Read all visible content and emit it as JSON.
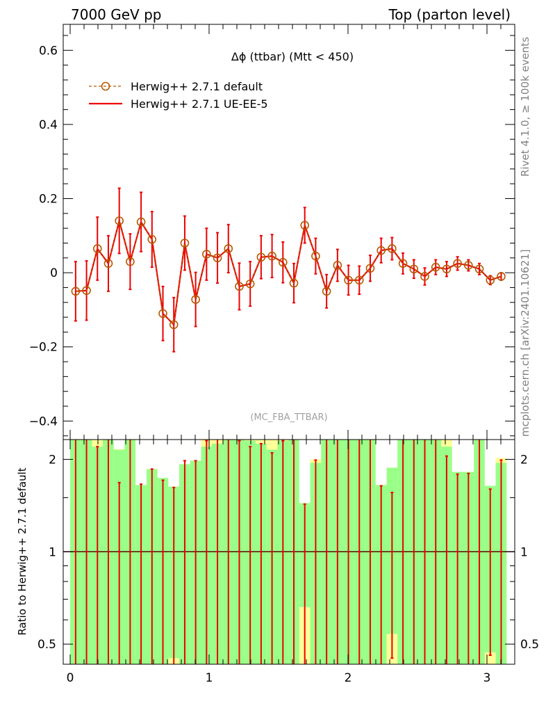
{
  "header": {
    "left": "7000 GeV pp",
    "right": "Top (parton level)"
  },
  "side": {
    "rivet": "Rivet 4.1.0, ≥ 100k events",
    "mcplots": "mcplots.cern.ch [arXiv:2401.10621]"
  },
  "colors": {
    "default": "#b35900",
    "ue": "#ee0000",
    "band_green": "#99ff88",
    "band_yellow": "#ffff99"
  },
  "chart_data": [
    {
      "type": "line",
      "title": "Δϕ (ttbar) (Mtt < 450)",
      "watermark": "(MC_FBA_TTBAR)",
      "xlabel": "",
      "ylabel": "",
      "xlim": [
        -0.05,
        3.2
      ],
      "ylim": [
        -0.45,
        0.67
      ],
      "yticks": [
        -0.4,
        -0.2,
        0,
        0.2,
        0.4,
        0.6
      ],
      "yticklabels": [
        "−0.4",
        "−0.2",
        "0",
        "0.2",
        "0.4",
        "0.6"
      ],
      "legend_position": "top-left",
      "x": [
        0.0393,
        0.1178,
        0.1963,
        0.2749,
        0.3534,
        0.432,
        0.5105,
        0.589,
        0.6676,
        0.7461,
        0.8247,
        0.9032,
        0.9817,
        1.0603,
        1.1388,
        1.2174,
        1.2959,
        1.3744,
        1.453,
        1.5315,
        1.6101,
        1.6886,
        1.7671,
        1.8457,
        1.9242,
        2.0028,
        2.0813,
        2.1598,
        2.2384,
        2.3169,
        2.3955,
        2.474,
        2.5525,
        2.6311,
        2.7096,
        2.7882,
        2.8667,
        2.9452,
        3.0238,
        3.1023
      ],
      "series": [
        {
          "name": "Herwig++ 2.7.1 default",
          "style": "dashed-open-circles",
          "values": [
            -0.05,
            -0.048,
            0.065,
            0.025,
            0.14,
            0.03,
            0.137,
            0.09,
            -0.11,
            -0.14,
            0.08,
            -0.072,
            0.05,
            0.04,
            0.065,
            -0.037,
            -0.03,
            0.042,
            0.045,
            0.028,
            -0.028,
            0.128,
            0.045,
            -0.05,
            0.02,
            -0.02,
            -0.02,
            0.012,
            0.06,
            0.065,
            0.025,
            0.01,
            -0.01,
            0.015,
            0.01,
            0.025,
            0.02,
            0.01,
            -0.02,
            -0.01
          ],
          "errors": [
            0.08,
            0.08,
            0.085,
            0.075,
            0.088,
            0.075,
            0.08,
            0.075,
            0.073,
            0.073,
            0.073,
            0.073,
            0.07,
            0.068,
            0.065,
            0.063,
            0.06,
            0.058,
            0.058,
            0.055,
            0.053,
            0.048,
            0.048,
            0.045,
            0.043,
            0.04,
            0.038,
            0.035,
            0.033,
            0.03,
            0.028,
            0.025,
            0.023,
            0.02,
            0.02,
            0.018,
            0.015,
            0.015,
            0.012,
            0.01
          ]
        },
        {
          "name": "Herwig++ 2.7.1 UE-EE-5",
          "style": "solid-line",
          "values": [
            -0.05,
            -0.048,
            0.065,
            0.025,
            0.14,
            0.03,
            0.137,
            0.09,
            -0.11,
            -0.14,
            0.08,
            -0.072,
            0.05,
            0.04,
            0.065,
            -0.037,
            -0.03,
            0.042,
            0.045,
            0.028,
            -0.028,
            0.128,
            0.045,
            -0.05,
            0.02,
            -0.02,
            -0.02,
            0.012,
            0.06,
            0.065,
            0.025,
            0.01,
            -0.01,
            0.015,
            0.01,
            0.025,
            0.02,
            0.01,
            -0.02,
            -0.01
          ],
          "errors": [
            0.08,
            0.08,
            0.085,
            0.075,
            0.088,
            0.075,
            0.08,
            0.075,
            0.073,
            0.073,
            0.073,
            0.073,
            0.07,
            0.068,
            0.065,
            0.063,
            0.06,
            0.058,
            0.058,
            0.055,
            0.053,
            0.048,
            0.048,
            0.045,
            0.043,
            0.04,
            0.038,
            0.035,
            0.033,
            0.03,
            0.028,
            0.025,
            0.023,
            0.02,
            0.02,
            0.018,
            0.015,
            0.015,
            0.012,
            0.01
          ]
        }
      ]
    },
    {
      "type": "bar",
      "title": "",
      "xlabel": "",
      "ylabel": "Ratio to Herwig++ 2.7.1 default",
      "scale": "log",
      "xlim": [
        -0.05,
        3.2
      ],
      "ylim": [
        0.43,
        2.32
      ],
      "xticks": [
        0,
        1,
        2,
        3
      ],
      "xticklabels": [
        "0",
        "1",
        "2",
        "3"
      ],
      "yticks": [
        0.5,
        1,
        2
      ],
      "yticklabels": [
        "0.5",
        "1",
        "2"
      ],
      "reference": 1,
      "bin_edges": [
        0,
        0.0785,
        0.1571,
        0.2356,
        0.3142,
        0.3927,
        0.4712,
        0.5498,
        0.6283,
        0.7069,
        0.7854,
        0.8639,
        0.9425,
        1.021,
        1.0996,
        1.1781,
        1.2566,
        1.3352,
        1.4137,
        1.4923,
        1.5708,
        1.6493,
        1.7279,
        1.8064,
        1.885,
        1.9635,
        2.042,
        2.1206,
        2.1991,
        2.2777,
        2.3562,
        2.4347,
        2.5133,
        2.5918,
        2.6704,
        2.7489,
        2.8274,
        2.906,
        2.9845,
        3.0631,
        3.1416
      ],
      "green_band_high": [
        2.4,
        2.4,
        2.4,
        2.4,
        2.4,
        2.4,
        2.4,
        2.4,
        2.4,
        2.4,
        2.4,
        2.4,
        2.4,
        2.4,
        2.4,
        2.4,
        2.4,
        2.4,
        2.4,
        2.4,
        2.4,
        2.4,
        2.4,
        2.4,
        2.4,
        2.4,
        2.4,
        2.4,
        2.4,
        2.4,
        2.4,
        2.4,
        2.4,
        2.4,
        2.4,
        2.4,
        2.4,
        2.4,
        2.4,
        2.4
      ],
      "green_band_low": [
        0.3,
        0.3,
        0.3,
        0.3,
        0.3,
        0.3,
        0.3,
        0.3,
        0.3,
        0.3,
        0.3,
        0.3,
        0.3,
        0.3,
        0.3,
        0.3,
        0.3,
        0.3,
        0.3,
        0.3,
        0.3,
        0.3,
        0.3,
        0.3,
        0.3,
        0.3,
        0.3,
        0.3,
        0.3,
        0.3,
        0.3,
        0.3,
        0.3,
        0.3,
        0.3,
        0.3,
        0.3,
        0.3,
        0.3,
        0.3
      ],
      "yellow_band_high": [
        2.4,
        2.4,
        2.4,
        2.4,
        2.4,
        2.4,
        2.4,
        2.4,
        2.4,
        2.4,
        2.4,
        2.4,
        2.4,
        2.4,
        2.4,
        2.4,
        2.4,
        2.4,
        2.4,
        2.4,
        2.4,
        2.4,
        2.4,
        2.4,
        2.4,
        2.4,
        2.4,
        2.4,
        2.4,
        2.4,
        2.4,
        2.4,
        2.4,
        2.4,
        2.4,
        2.4,
        2.4,
        2.4,
        2.4,
        2.4
      ],
      "yellow_band_low": [
        0.3,
        0.3,
        0.3,
        0.3,
        0.3,
        0.3,
        0.3,
        0.3,
        0.3,
        0.3,
        0.3,
        0.3,
        0.3,
        0.3,
        0.3,
        0.3,
        0.3,
        0.3,
        0.3,
        0.3,
        0.3,
        0.3,
        0.3,
        0.3,
        0.3,
        0.3,
        0.3,
        0.3,
        0.3,
        0.3,
        0.3,
        0.3,
        0.3,
        0.3,
        0.3,
        0.3,
        0.3,
        0.3,
        0.3,
        0.3
      ],
      "green_cap": [
        2.4,
        2.4,
        2.2,
        2.4,
        2.15,
        2.4,
        2.0,
        2.05,
        1.95,
        1.9,
        2.0,
        2.0,
        2.2,
        2.25,
        2.4,
        2.4,
        2.3,
        2.25,
        2.15,
        2.3,
        2.4,
        1.7,
        1.95,
        2.4,
        2.4,
        2.4,
        2.4,
        2.4,
        2.1,
        2.05,
        2.4,
        2.4,
        2.4,
        2.4,
        2.2,
        2.0,
        2.0,
        2.4,
        1.9,
        1.95
      ],
      "yellow_cap": [
        2.4,
        2.4,
        2.4,
        2.4,
        2.4,
        2.4,
        2.4,
        2.4,
        2.4,
        2.4,
        2.4,
        2.4,
        2.4,
        2.4,
        2.4,
        2.4,
        2.4,
        2.4,
        2.4,
        2.4,
        2.4,
        2.4,
        2.4,
        2.4,
        2.4,
        2.4,
        2.4,
        2.4,
        2.4,
        2.4,
        2.4,
        2.4,
        2.4,
        2.4,
        2.4,
        2.4,
        2.4,
        2.4,
        2.4,
        2.4
      ],
      "yellow_visible_top": [
        2.32,
        2.32,
        2.32,
        2.32,
        2.16,
        2.32,
        1.65,
        1.86,
        1.74,
        1.63,
        1.93,
        1.98,
        2.32,
        2.32,
        2.32,
        2.32,
        2.32,
        2.32,
        2.32,
        2.32,
        2.32,
        1.44,
        2.0,
        2.32,
        2.32,
        2.32,
        2.32,
        2.32,
        1.65,
        1.88,
        2.32,
        2.32,
        2.32,
        2.32,
        2.32,
        1.82,
        1.82,
        2.32,
        1.64,
        2.02
      ],
      "yellow_visible_bottom": [
        0.43,
        0.43,
        0.43,
        0.43,
        0.43,
        0.43,
        0.43,
        0.43,
        0.43,
        0.45,
        0.43,
        0.43,
        0.43,
        0.43,
        0.43,
        0.43,
        0.43,
        0.43,
        0.43,
        0.43,
        0.43,
        0.66,
        0.43,
        0.43,
        0.43,
        0.43,
        0.43,
        0.43,
        0.43,
        0.54,
        0.43,
        0.43,
        0.43,
        0.43,
        0.43,
        0.43,
        0.43,
        0.43,
        0.47,
        0.43
      ],
      "green_visible_top": [
        2.32,
        2.32,
        2.32,
        2.32,
        2.32,
        2.32,
        2.32,
        2.32,
        2.32,
        2.32,
        2.32,
        2.32,
        2.32,
        2.32,
        2.32,
        2.32,
        2.32,
        2.32,
        2.32,
        2.32,
        2.32,
        2.32,
        2.32,
        2.32,
        2.32,
        2.32,
        2.32,
        2.32,
        2.32,
        2.32,
        2.32,
        2.32,
        2.32,
        2.32,
        2.32,
        2.32,
        2.32,
        2.32,
        2.32,
        2.32
      ],
      "green_visible_bottom": [
        0.43,
        0.43,
        0.43,
        0.43,
        0.43,
        0.43,
        0.43,
        0.43,
        0.43,
        0.43,
        0.43,
        0.43,
        0.43,
        0.43,
        0.43,
        0.43,
        0.43,
        0.43,
        0.43,
        0.43,
        0.43,
        0.43,
        0.43,
        0.43,
        0.43,
        0.43,
        0.43,
        0.43,
        0.43,
        0.43,
        0.43,
        0.43,
        0.43,
        0.43,
        0.43,
        0.43,
        0.43,
        0.43,
        0.43,
        0.43
      ],
      "ratio_values": [
        1,
        1,
        1,
        1,
        1,
        1,
        1,
        1,
        1,
        1,
        1,
        1,
        1,
        1,
        1,
        1,
        1,
        1,
        1,
        1,
        1,
        1,
        1,
        1,
        1,
        1,
        1,
        1,
        1,
        1,
        1,
        1,
        1,
        1,
        1,
        1,
        1,
        1,
        1,
        1
      ],
      "ratio_err_high": [
        2.4,
        2.4,
        2.2,
        2.4,
        1.68,
        2.4,
        1.66,
        1.86,
        1.71,
        1.62,
        1.98,
        1.98,
        2.3,
        2.4,
        2.4,
        2.3,
        2.2,
        2.25,
        2.1,
        2.3,
        2.4,
        1.43,
        1.99,
        2.4,
        2.4,
        2.4,
        2.4,
        2.4,
        1.64,
        1.56,
        2.4,
        2.4,
        2.4,
        2.4,
        2.05,
        1.79,
        1.8,
        2.4,
        1.6,
        1.99
      ],
      "ratio_err_low": [
        0.3,
        0.3,
        0.3,
        0.3,
        0.3,
        0.3,
        0.37,
        0.3,
        0.3,
        0.43,
        0.3,
        0.3,
        0.3,
        0.3,
        0.3,
        0.3,
        0.3,
        0.3,
        0.3,
        0.3,
        0.3,
        0.3,
        0.3,
        0.3,
        0.3,
        0.3,
        0.3,
        0.3,
        0.3,
        0.45,
        0.3,
        0.3,
        0.3,
        0.3,
        0.3,
        0.3,
        0.3,
        0.3,
        0.46,
        0.3
      ]
    }
  ]
}
